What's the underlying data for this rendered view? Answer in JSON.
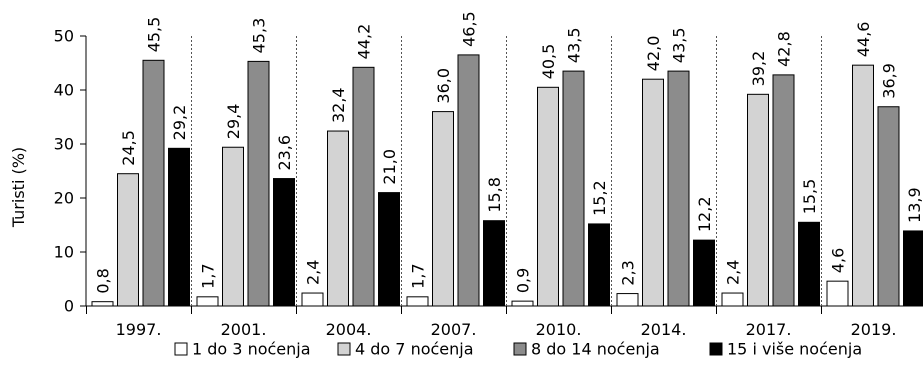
{
  "chart_data": {
    "type": "bar",
    "ylabel": "Turisti (%)",
    "ylim": [
      0,
      50
    ],
    "yticks": [
      "0",
      "10",
      "20",
      "30",
      "40",
      "50"
    ],
    "grid": false,
    "category_separators": "dotted",
    "legend_position": "bottom",
    "categories": [
      "1997.",
      "2001.",
      "2004.",
      "2007.",
      "2010.",
      "2014.",
      "2017.",
      "2019."
    ],
    "series": [
      {
        "name": "1 do 3 noćenja",
        "color": "#ffffff",
        "values": [
          0.8,
          1.7,
          2.4,
          1.7,
          0.9,
          2.3,
          2.4,
          4.6
        ],
        "labels": [
          "0,8",
          "1,7",
          "2,4",
          "1,7",
          "0,9",
          "2,3",
          "2,4",
          "4,6"
        ]
      },
      {
        "name": "4 do 7 noćenja",
        "color": "#d3d3d3",
        "values": [
          24.5,
          29.4,
          32.4,
          36.0,
          40.5,
          42.0,
          39.2,
          44.6
        ],
        "labels": [
          "24,5",
          "29,4",
          "32,4",
          "36,0",
          "40,5",
          "42,0",
          "39,2",
          "44,6"
        ]
      },
      {
        "name": "8 do 14 noćenja",
        "color": "#8c8c8c",
        "values": [
          45.5,
          45.3,
          44.2,
          46.5,
          43.5,
          43.5,
          42.8,
          36.9
        ],
        "labels": [
          "45,5",
          "45,3",
          "44,2",
          "46,5",
          "43,5",
          "43,5",
          "42,8",
          "36,9"
        ]
      },
      {
        "name": "15 i više noćenja",
        "color": "#000000",
        "values": [
          29.2,
          23.6,
          21.0,
          15.8,
          15.2,
          12.2,
          15.5,
          13.9
        ],
        "labels": [
          "29,2",
          "23,6",
          "21,0",
          "15,8",
          "15,2",
          "12,2",
          "15,5",
          "13,9"
        ]
      }
    ]
  }
}
